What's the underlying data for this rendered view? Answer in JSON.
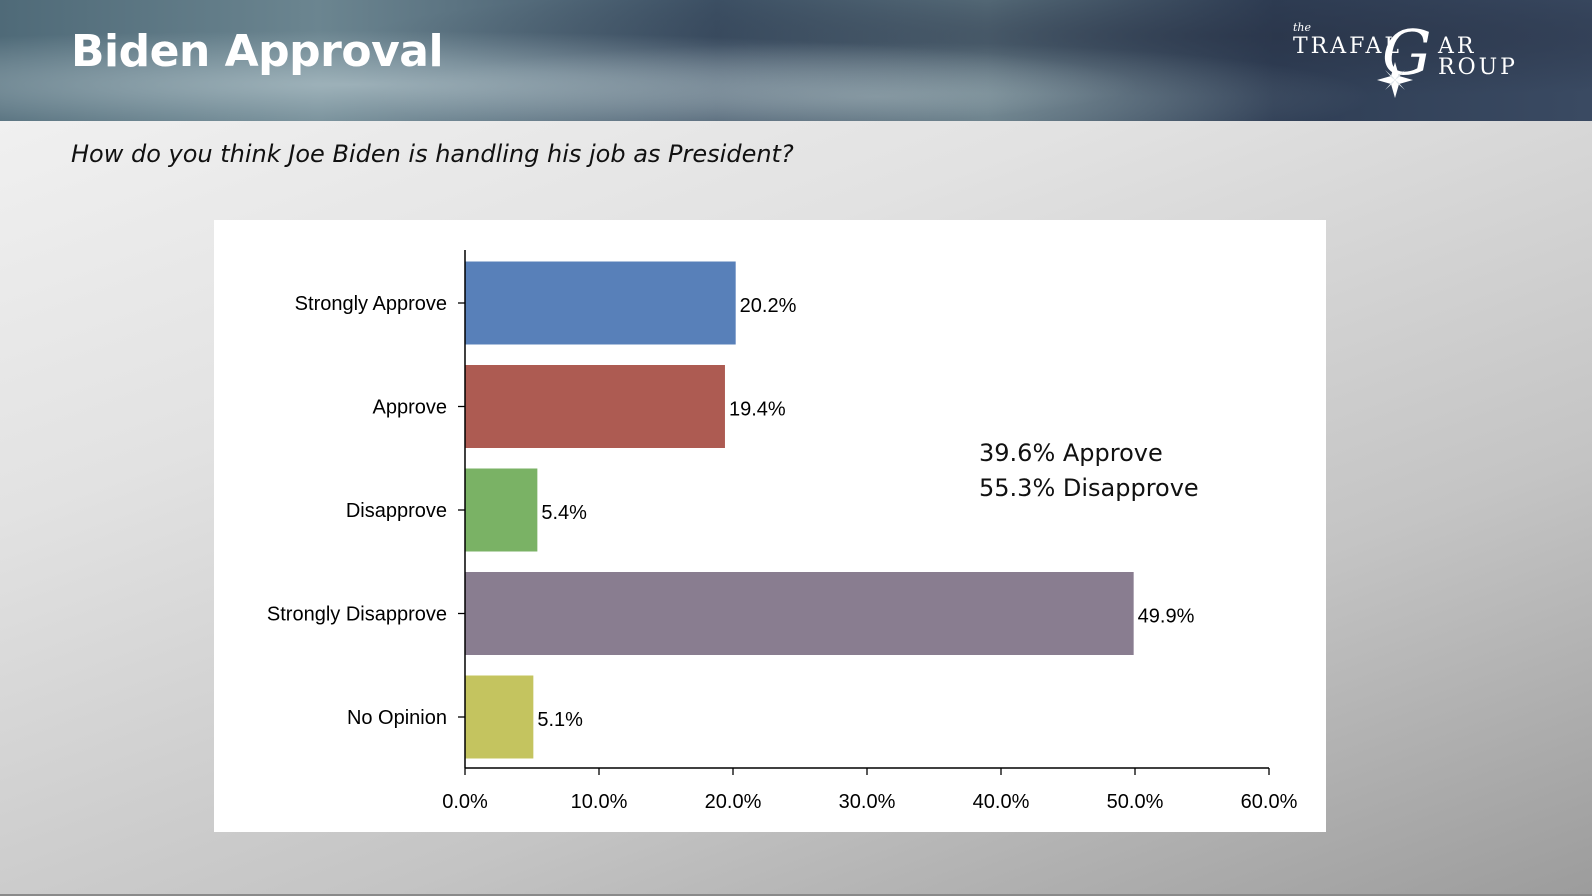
{
  "header": {
    "title": "Biden Approval",
    "logo": {
      "the": "the",
      "line1": "TRAFAL",
      "g": "G",
      "ar": "AR",
      "line2": "ROUP"
    }
  },
  "question": "How do you think Joe Biden is handling his job as President?",
  "summary": {
    "line1": "39.6% Approve",
    "line2": "55.3% Disapprove"
  },
  "chart_data": {
    "type": "bar",
    "orientation": "horizontal",
    "categories": [
      "Strongly Approve",
      "Approve",
      "Disapprove",
      "Strongly Disapprove",
      "No Opinion"
    ],
    "values": [
      20.2,
      19.4,
      5.4,
      49.9,
      5.1
    ],
    "data_labels": [
      "20.2%",
      "19.4%",
      "5.4%",
      "49.9%",
      "5.1%"
    ],
    "colors": [
      "#5880b9",
      "#ad5b52",
      "#7ab265",
      "#897d90",
      "#c4c45f"
    ],
    "xlim": [
      0,
      60
    ],
    "xticks": [
      0,
      10,
      20,
      30,
      40,
      50,
      60
    ],
    "xtick_labels": [
      "0.0%",
      "10.0%",
      "20.0%",
      "30.0%",
      "40.0%",
      "50.0%",
      "60.0%"
    ],
    "title": "",
    "xlabel": "",
    "ylabel": "",
    "grid": false
  }
}
